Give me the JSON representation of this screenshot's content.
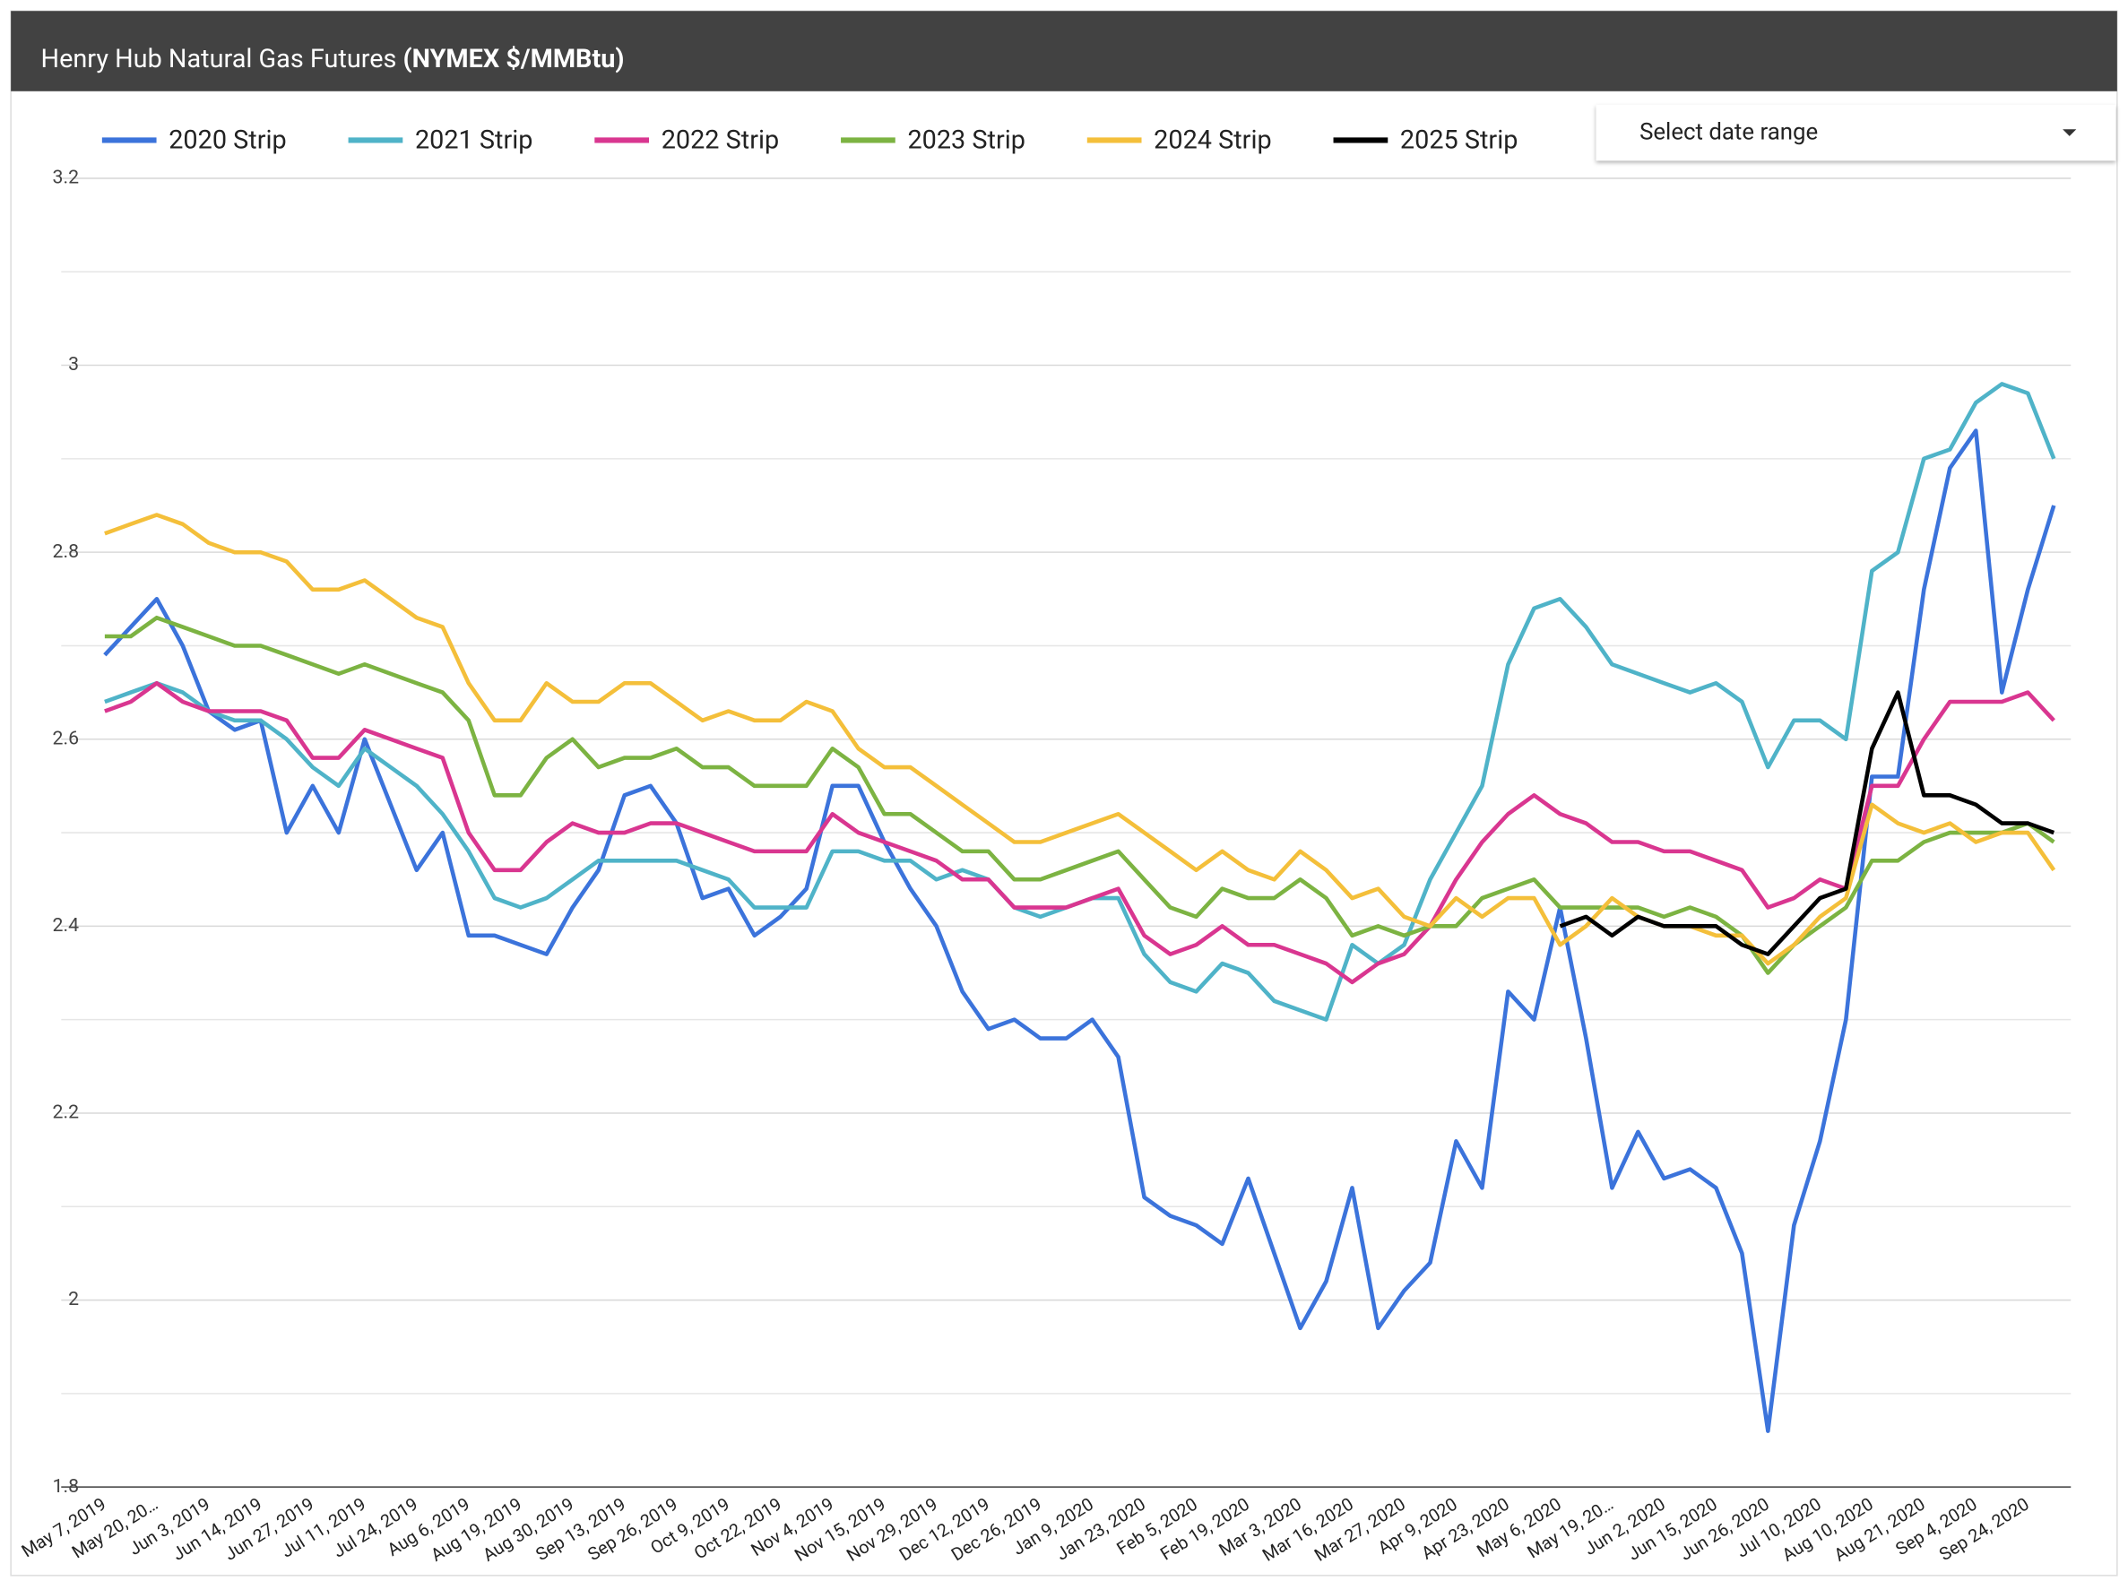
{
  "chart_data": {
    "type": "line",
    "title": "Henry Hub Natural Gas Futures",
    "title_units": "(NYMEX $/MMBtu)",
    "control_label": "Select date range",
    "categories": [
      "May 7, 2019",
      null,
      "May 20, 20…",
      null,
      "Jun 3, 2019",
      null,
      "Jun 14, 2019",
      null,
      "Jun 27, 2019",
      null,
      "Jul 11, 2019",
      null,
      "Jul 24, 2019",
      null,
      "Aug 6, 2019",
      null,
      "Aug 19, 2019",
      null,
      "Aug 30, 2019",
      null,
      "Sep 13, 2019",
      null,
      "Sep 26, 2019",
      null,
      "Oct 9, 2019",
      null,
      "Oct 22, 2019",
      null,
      "Nov 4, 2019",
      null,
      "Nov 15, 2019",
      null,
      "Nov 29, 2019",
      null,
      "Dec 12, 2019",
      null,
      "Dec 26, 2019",
      null,
      "Jan 9, 2020",
      null,
      "Jan 23, 2020",
      null,
      "Feb 5, 2020",
      null,
      "Feb 19, 2020",
      null,
      "Mar 3, 2020",
      null,
      "Mar 16, 2020",
      null,
      "Mar 27, 2020",
      null,
      "Apr 9, 2020",
      null,
      "Apr 23, 2020",
      null,
      "May 6, 2020",
      null,
      "May 19, 20…",
      null,
      "Jun 2, 2020",
      null,
      "Jun 15, 2020",
      null,
      "Jun 26, 2020",
      null,
      "Jul 10, 2020",
      null,
      "Aug 10, 2020",
      null,
      "Aug 21, 2020",
      null,
      "Sep 4, 2020",
      null,
      "Sep 24, 2020",
      null
    ],
    "series": [
      {
        "name": "2020 Strip",
        "color": "#3b73db",
        "values": [
          2.69,
          2.72,
          2.75,
          2.7,
          2.63,
          2.61,
          2.62,
          2.5,
          2.55,
          2.5,
          2.6,
          2.53,
          2.46,
          2.5,
          2.39,
          2.39,
          2.38,
          2.37,
          2.42,
          2.46,
          2.54,
          2.55,
          2.51,
          2.43,
          2.44,
          2.39,
          2.41,
          2.44,
          2.55,
          2.55,
          2.49,
          2.44,
          2.4,
          2.33,
          2.29,
          2.3,
          2.28,
          2.28,
          2.3,
          2.26,
          2.11,
          2.09,
          2.08,
          2.06,
          2.13,
          2.05,
          1.97,
          2.02,
          2.12,
          1.97,
          2.01,
          2.04,
          2.17,
          2.12,
          2.33,
          2.3,
          2.42,
          2.28,
          2.12,
          2.18,
          2.13,
          2.14,
          2.12,
          2.05,
          1.86,
          2.08,
          2.17,
          2.3,
          2.56,
          2.56,
          2.76,
          2.89,
          2.93,
          2.65,
          2.76,
          2.85
        ]
      },
      {
        "name": "2021 Strip",
        "color": "#4fb3c8",
        "values": [
          2.64,
          2.65,
          2.66,
          2.65,
          2.63,
          2.62,
          2.62,
          2.6,
          2.57,
          2.55,
          2.59,
          2.57,
          2.55,
          2.52,
          2.48,
          2.43,
          2.42,
          2.43,
          2.45,
          2.47,
          2.47,
          2.47,
          2.47,
          2.46,
          2.45,
          2.42,
          2.42,
          2.42,
          2.48,
          2.48,
          2.47,
          2.47,
          2.45,
          2.46,
          2.45,
          2.42,
          2.41,
          2.42,
          2.43,
          2.43,
          2.37,
          2.34,
          2.33,
          2.36,
          2.35,
          2.32,
          2.31,
          2.3,
          2.38,
          2.36,
          2.38,
          2.45,
          2.5,
          2.55,
          2.68,
          2.74,
          2.75,
          2.72,
          2.68,
          2.67,
          2.66,
          2.65,
          2.66,
          2.64,
          2.57,
          2.62,
          2.62,
          2.6,
          2.78,
          2.8,
          2.9,
          2.91,
          2.96,
          2.98,
          2.97,
          2.9
        ]
      },
      {
        "name": "2022 Strip",
        "color": "#d93690",
        "values": [
          2.63,
          2.64,
          2.66,
          2.64,
          2.63,
          2.63,
          2.63,
          2.62,
          2.58,
          2.58,
          2.61,
          2.6,
          2.59,
          2.58,
          2.5,
          2.46,
          2.46,
          2.49,
          2.51,
          2.5,
          2.5,
          2.51,
          2.51,
          2.5,
          2.49,
          2.48,
          2.48,
          2.48,
          2.52,
          2.5,
          2.49,
          2.48,
          2.47,
          2.45,
          2.45,
          2.42,
          2.42,
          2.42,
          2.43,
          2.44,
          2.39,
          2.37,
          2.38,
          2.4,
          2.38,
          2.38,
          2.37,
          2.36,
          2.34,
          2.36,
          2.37,
          2.4,
          2.45,
          2.49,
          2.52,
          2.54,
          2.52,
          2.51,
          2.49,
          2.49,
          2.48,
          2.48,
          2.47,
          2.46,
          2.42,
          2.43,
          2.45,
          2.44,
          2.55,
          2.55,
          2.6,
          2.64,
          2.64,
          2.64,
          2.65,
          2.62
        ]
      },
      {
        "name": "2023 Strip",
        "color": "#7cb342",
        "values": [
          2.71,
          2.71,
          2.73,
          2.72,
          2.71,
          2.7,
          2.7,
          2.69,
          2.68,
          2.67,
          2.68,
          2.67,
          2.66,
          2.65,
          2.62,
          2.54,
          2.54,
          2.58,
          2.6,
          2.57,
          2.58,
          2.58,
          2.59,
          2.57,
          2.57,
          2.55,
          2.55,
          2.55,
          2.59,
          2.57,
          2.52,
          2.52,
          2.5,
          2.48,
          2.48,
          2.45,
          2.45,
          2.46,
          2.47,
          2.48,
          2.45,
          2.42,
          2.41,
          2.44,
          2.43,
          2.43,
          2.45,
          2.43,
          2.39,
          2.4,
          2.39,
          2.4,
          2.4,
          2.43,
          2.44,
          2.45,
          2.42,
          2.42,
          2.42,
          2.42,
          2.41,
          2.42,
          2.41,
          2.39,
          2.35,
          2.38,
          2.4,
          2.42,
          2.47,
          2.47,
          2.49,
          2.5,
          2.5,
          2.5,
          2.51,
          2.49
        ]
      },
      {
        "name": "2024 Strip",
        "color": "#f4bf3a",
        "values": [
          2.82,
          2.83,
          2.84,
          2.83,
          2.81,
          2.8,
          2.8,
          2.79,
          2.76,
          2.76,
          2.77,
          2.75,
          2.73,
          2.72,
          2.66,
          2.62,
          2.62,
          2.66,
          2.64,
          2.64,
          2.66,
          2.66,
          2.64,
          2.62,
          2.63,
          2.62,
          2.62,
          2.64,
          2.63,
          2.59,
          2.57,
          2.57,
          2.55,
          2.53,
          2.51,
          2.49,
          2.49,
          2.5,
          2.51,
          2.52,
          2.5,
          2.48,
          2.46,
          2.48,
          2.46,
          2.45,
          2.48,
          2.46,
          2.43,
          2.44,
          2.41,
          2.4,
          2.43,
          2.41,
          2.43,
          2.43,
          2.38,
          2.4,
          2.43,
          2.41,
          2.4,
          2.4,
          2.39,
          2.39,
          2.36,
          2.38,
          2.41,
          2.43,
          2.53,
          2.51,
          2.5,
          2.51,
          2.49,
          2.5,
          2.5,
          2.46
        ]
      },
      {
        "name": "2025 Strip",
        "color": "#000000",
        "values": [
          null,
          null,
          null,
          null,
          null,
          null,
          null,
          null,
          null,
          null,
          null,
          null,
          null,
          null,
          null,
          null,
          null,
          null,
          null,
          null,
          null,
          null,
          null,
          null,
          null,
          null,
          null,
          null,
          null,
          null,
          null,
          null,
          null,
          null,
          null,
          null,
          null,
          null,
          null,
          null,
          null,
          null,
          null,
          null,
          null,
          null,
          null,
          null,
          null,
          null,
          null,
          null,
          null,
          null,
          null,
          null,
          2.4,
          2.41,
          2.39,
          2.41,
          2.4,
          2.4,
          2.4,
          2.38,
          2.37,
          2.4,
          2.43,
          2.44,
          2.59,
          2.65,
          2.54,
          2.54,
          2.53,
          2.51,
          2.51,
          2.5
        ]
      }
    ],
    "ylim": [
      1.8,
      3.2
    ],
    "yticks": [
      1.8,
      2,
      2.2,
      2.4,
      2.6,
      2.8,
      3,
      3.2
    ],
    "grid": true,
    "legend": "top"
  }
}
